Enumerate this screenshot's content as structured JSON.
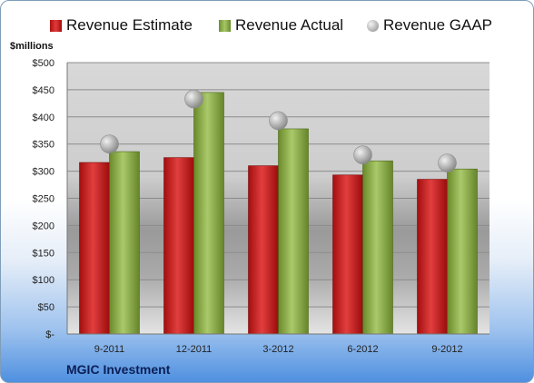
{
  "legend": {
    "estimate": "Revenue Estimate",
    "actual": "Revenue Actual",
    "gaap": "Revenue GAAP"
  },
  "colors": {
    "estimate": "#d42a2a",
    "actual": "#8fb04a",
    "gaap": "#b4b4b4",
    "footer": "#0b1f57"
  },
  "chart_data": {
    "type": "bar",
    "categories": [
      "9-2011",
      "12-2011",
      "3-2012",
      "6-2012",
      "9-2012"
    ],
    "series": [
      {
        "name": "Revenue Estimate",
        "values": [
          316,
          325,
          310,
          293,
          285
        ]
      },
      {
        "name": "Revenue Actual",
        "values": [
          336,
          445,
          378,
          319,
          304
        ]
      },
      {
        "name": "Revenue GAAP",
        "values": [
          350,
          433,
          393,
          330,
          315
        ]
      }
    ],
    "ylabel": "$millions",
    "ylim": [
      0,
      500
    ],
    "yticks": [
      0,
      50,
      100,
      150,
      200,
      250,
      300,
      350,
      400,
      450,
      500
    ],
    "ytick_labels": [
      "$-",
      "$50",
      "$100",
      "$150",
      "$200",
      "$250",
      "$300",
      "$350",
      "$400",
      "$450",
      "$500"
    ],
    "grid": true,
    "legend_position": "top"
  },
  "footer": "MGIC Investment"
}
